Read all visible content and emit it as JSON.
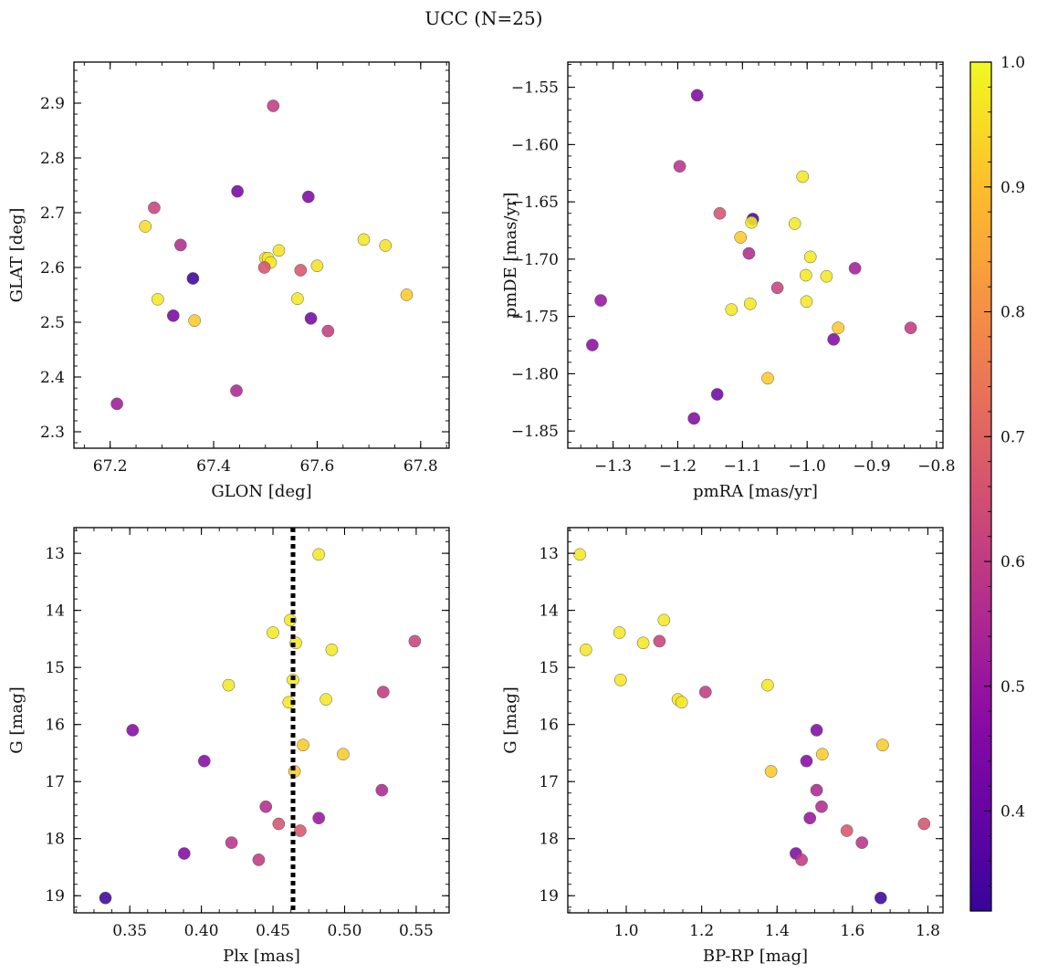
{
  "figure": {
    "title": "UCC (N=25)"
  },
  "colorbar": {
    "ticks": [
      "0.4",
      "0.5",
      "0.6",
      "0.7",
      "0.8",
      "0.9",
      "1.0"
    ],
    "min": 0.32,
    "max": 1.0,
    "colormap": "plasma"
  },
  "chart_data": [
    {
      "type": "scatter",
      "xlabel": "GLON [deg]",
      "ylabel": "GLAT [deg]",
      "xlim": [
        67.13,
        67.855
      ],
      "ylim": [
        2.27,
        2.975
      ],
      "xticks": [
        "67.2",
        "67.4",
        "67.6",
        "67.8"
      ],
      "yticks": [
        "2.3",
        "2.4",
        "2.5",
        "2.6",
        "2.7",
        "2.8",
        "2.9"
      ],
      "x": [
        67.213,
        67.285,
        67.268,
        67.336,
        67.292,
        67.322,
        67.36,
        67.363,
        67.446,
        67.444,
        67.515,
        67.5,
        67.505,
        67.51,
        67.526,
        67.583,
        67.568,
        67.588,
        67.6,
        67.562,
        67.621,
        67.69,
        67.732,
        67.773,
        67.498
      ],
      "y": [
        2.351,
        2.709,
        2.675,
        2.641,
        2.542,
        2.512,
        2.58,
        2.503,
        2.739,
        2.375,
        2.895,
        2.617,
        2.617,
        2.609,
        2.631,
        2.729,
        2.595,
        2.507,
        2.603,
        2.543,
        2.484,
        2.651,
        2.64,
        2.55,
        2.6
      ],
      "c": [
        0.52,
        0.62,
        0.95,
        0.56,
        0.97,
        0.44,
        0.33,
        0.92,
        0.44,
        0.55,
        0.6,
        0.97,
        0.97,
        0.97,
        0.96,
        0.45,
        0.67,
        0.43,
        0.96,
        0.97,
        0.61,
        0.97,
        0.96,
        0.92,
        0.66
      ]
    },
    {
      "type": "scatter",
      "xlabel": "pmRA [mas/yr]",
      "ylabel": "pmDE [mas/yr]",
      "xlim": [
        -1.37,
        -0.79
      ],
      "ylim": [
        -1.865,
        -1.528
      ],
      "xticks": [
        "−1.3",
        "−1.2",
        "−1.1",
        "−1.0",
        "−0.9",
        "−0.8"
      ],
      "yticks": [
        "−1.55",
        "−1.60",
        "−1.65",
        "−1.70",
        "−1.75",
        "−1.80",
        "−1.85"
      ],
      "x": [
        -1.17,
        -1.197,
        -1.007,
        -1.135,
        -1.084,
        -1.086,
        -1.103,
        -1.019,
        -1.09,
        -0.995,
        -1.002,
        -0.97,
        -0.926,
        -1.046,
        -1.001,
        -1.088,
        -1.117,
        -0.959,
        -0.952,
        -0.84,
        -1.061,
        -1.139,
        -1.175,
        -1.319,
        -1.332
      ],
      "y": [
        -1.557,
        -1.619,
        -1.628,
        -1.66,
        -1.665,
        -1.668,
        -1.681,
        -1.669,
        -1.695,
        -1.698,
        -1.714,
        -1.715,
        -1.708,
        -1.725,
        -1.737,
        -1.739,
        -1.744,
        -1.77,
        -1.76,
        -1.76,
        -1.804,
        -1.818,
        -1.839,
        -1.736,
        -1.775
      ],
      "c": [
        0.45,
        0.58,
        0.97,
        0.66,
        0.35,
        0.97,
        0.92,
        0.97,
        0.56,
        0.97,
        0.97,
        0.97,
        0.53,
        0.62,
        0.97,
        0.97,
        0.97,
        0.46,
        0.92,
        0.6,
        0.92,
        0.42,
        0.46,
        0.5,
        0.48
      ]
    },
    {
      "type": "scatter",
      "xlabel": "Plx [mas]",
      "ylabel": "G [mag]",
      "xlim": [
        0.311,
        0.573
      ],
      "ylim": [
        19.3,
        12.55
      ],
      "ylim_inverted": true,
      "xticks": [
        "0.35",
        "0.40",
        "0.45",
        "0.50",
        "0.55"
      ],
      "yticks": [
        "13",
        "14",
        "15",
        "16",
        "17",
        "18",
        "19"
      ],
      "vline": {
        "x": 0.464,
        "style": "dotted",
        "color": "#000000"
      },
      "x": [
        0.482,
        0.462,
        0.45,
        0.466,
        0.549,
        0.491,
        0.419,
        0.464,
        0.461,
        0.487,
        0.527,
        0.352,
        0.471,
        0.499,
        0.402,
        0.465,
        0.526,
        0.445,
        0.482,
        0.454,
        0.469,
        0.421,
        0.388,
        0.44,
        0.333
      ],
      "y": [
        13.02,
        14.17,
        14.39,
        14.57,
        14.54,
        14.69,
        15.31,
        15.22,
        15.61,
        15.56,
        15.43,
        16.1,
        16.36,
        16.52,
        16.64,
        16.82,
        17.15,
        17.44,
        17.64,
        17.74,
        17.86,
        18.07,
        18.26,
        18.37,
        19.04
      ],
      "c": [
        0.97,
        0.97,
        0.97,
        0.97,
        0.62,
        0.97,
        0.97,
        0.97,
        0.97,
        0.97,
        0.6,
        0.46,
        0.92,
        0.92,
        0.47,
        0.92,
        0.55,
        0.56,
        0.5,
        0.66,
        0.67,
        0.58,
        0.46,
        0.6,
        0.33
      ]
    },
    {
      "type": "scatter",
      "xlabel": "BP-RP [mag]",
      "ylabel": "G [mag]",
      "xlim": [
        0.845,
        1.84
      ],
      "ylim": [
        19.3,
        12.55
      ],
      "ylim_inverted": true,
      "xticks": [
        "1.0",
        "1.2",
        "1.4",
        "1.6",
        "1.8"
      ],
      "yticks": [
        "13",
        "14",
        "15",
        "16",
        "17",
        "18",
        "19"
      ],
      "x": [
        0.877,
        1.1,
        0.982,
        1.088,
        0.893,
        1.045,
        0.985,
        1.375,
        1.21,
        1.137,
        1.147,
        1.505,
        1.68,
        1.52,
        1.478,
        1.384,
        1.505,
        1.518,
        1.487,
        1.79,
        1.585,
        1.625,
        1.45,
        1.465,
        1.675
      ],
      "y": [
        13.02,
        14.17,
        14.39,
        14.54,
        14.69,
        14.57,
        15.22,
        15.31,
        15.43,
        15.56,
        15.61,
        16.1,
        16.36,
        16.52,
        16.64,
        16.82,
        17.15,
        17.44,
        17.64,
        17.74,
        17.86,
        18.07,
        18.26,
        18.37,
        19.04
      ],
      "c": [
        0.97,
        0.97,
        0.97,
        0.62,
        0.97,
        0.97,
        0.97,
        0.97,
        0.6,
        0.97,
        0.97,
        0.46,
        0.92,
        0.92,
        0.47,
        0.92,
        0.55,
        0.56,
        0.5,
        0.66,
        0.67,
        0.58,
        0.46,
        0.6,
        0.33
      ]
    }
  ]
}
